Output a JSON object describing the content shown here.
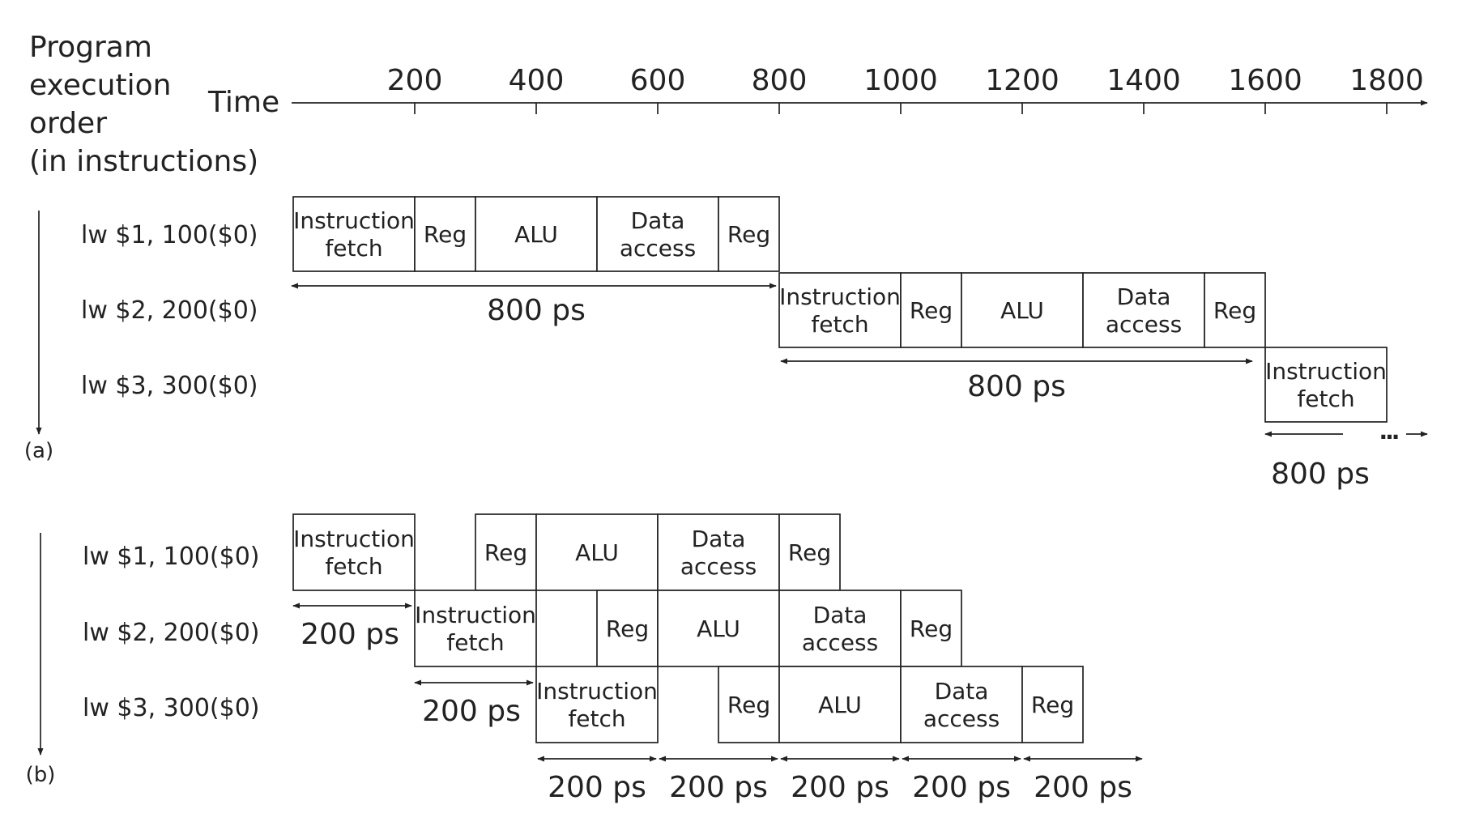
{
  "heading": {
    "lines": [
      "Program",
      "execution",
      "order",
      "(in instructions)"
    ],
    "time_label": "Time"
  },
  "time_axis": {
    "ticks": [
      "200",
      "400",
      "600",
      "800",
      "1000",
      "1200",
      "1400",
      "1600",
      "1800"
    ]
  },
  "stage_names": {
    "if": [
      "Instruction",
      "fetch"
    ],
    "reg": "Reg",
    "alu": "ALU",
    "mem": [
      "Data",
      "access"
    ]
  },
  "single_cycle": {
    "label": "(a)",
    "instructions": [
      "lw $1, 100($0)",
      "lw $2, 200($0)",
      "lw $3, 300($0)"
    ],
    "spans": [
      "800 ps",
      "800 ps",
      "800 ps"
    ],
    "continuation": "..."
  },
  "pipelined": {
    "label": "(b)",
    "instructions": [
      "lw $1, 100($0)",
      "lw $2, 200($0)",
      "lw $3, 300($0)"
    ],
    "spans": [
      "200 ps",
      "200 ps"
    ],
    "bottom_spans": [
      "200 ps",
      "200 ps",
      "200 ps",
      "200 ps",
      "200 ps"
    ]
  },
  "timing": {
    "stage_ps": {
      "if": 200,
      "reg": 100,
      "alu": 200,
      "mem": 200,
      "wb": 100
    },
    "single_cycle_ps": 800,
    "pipeline_stage_ps": 200
  }
}
